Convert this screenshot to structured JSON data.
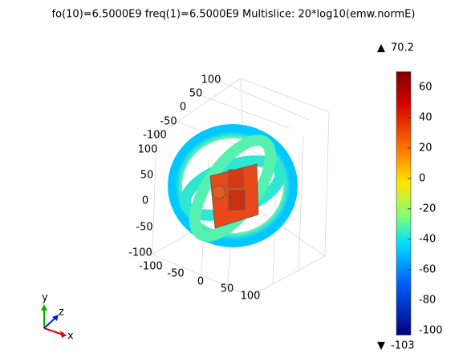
{
  "chart_data": {
    "type": "multislice",
    "title": "fo(10)=6.5000E9 freq(1)=6.5000E9   Multislice: 20*log10(emw.normE)",
    "clim": [
      -103,
      70.2
    ],
    "cticks": [
      60,
      40,
      20,
      0,
      -20,
      -40,
      -60,
      -80,
      -100
    ],
    "xticks": [
      -100,
      -50,
      0,
      50,
      100
    ],
    "yticks": [
      100,
      50,
      0,
      -50,
      -100
    ],
    "zticks": [
      100,
      50,
      0,
      -50,
      -100
    ],
    "triad": {
      "x": "x",
      "y": "y",
      "z": "z"
    }
  }
}
